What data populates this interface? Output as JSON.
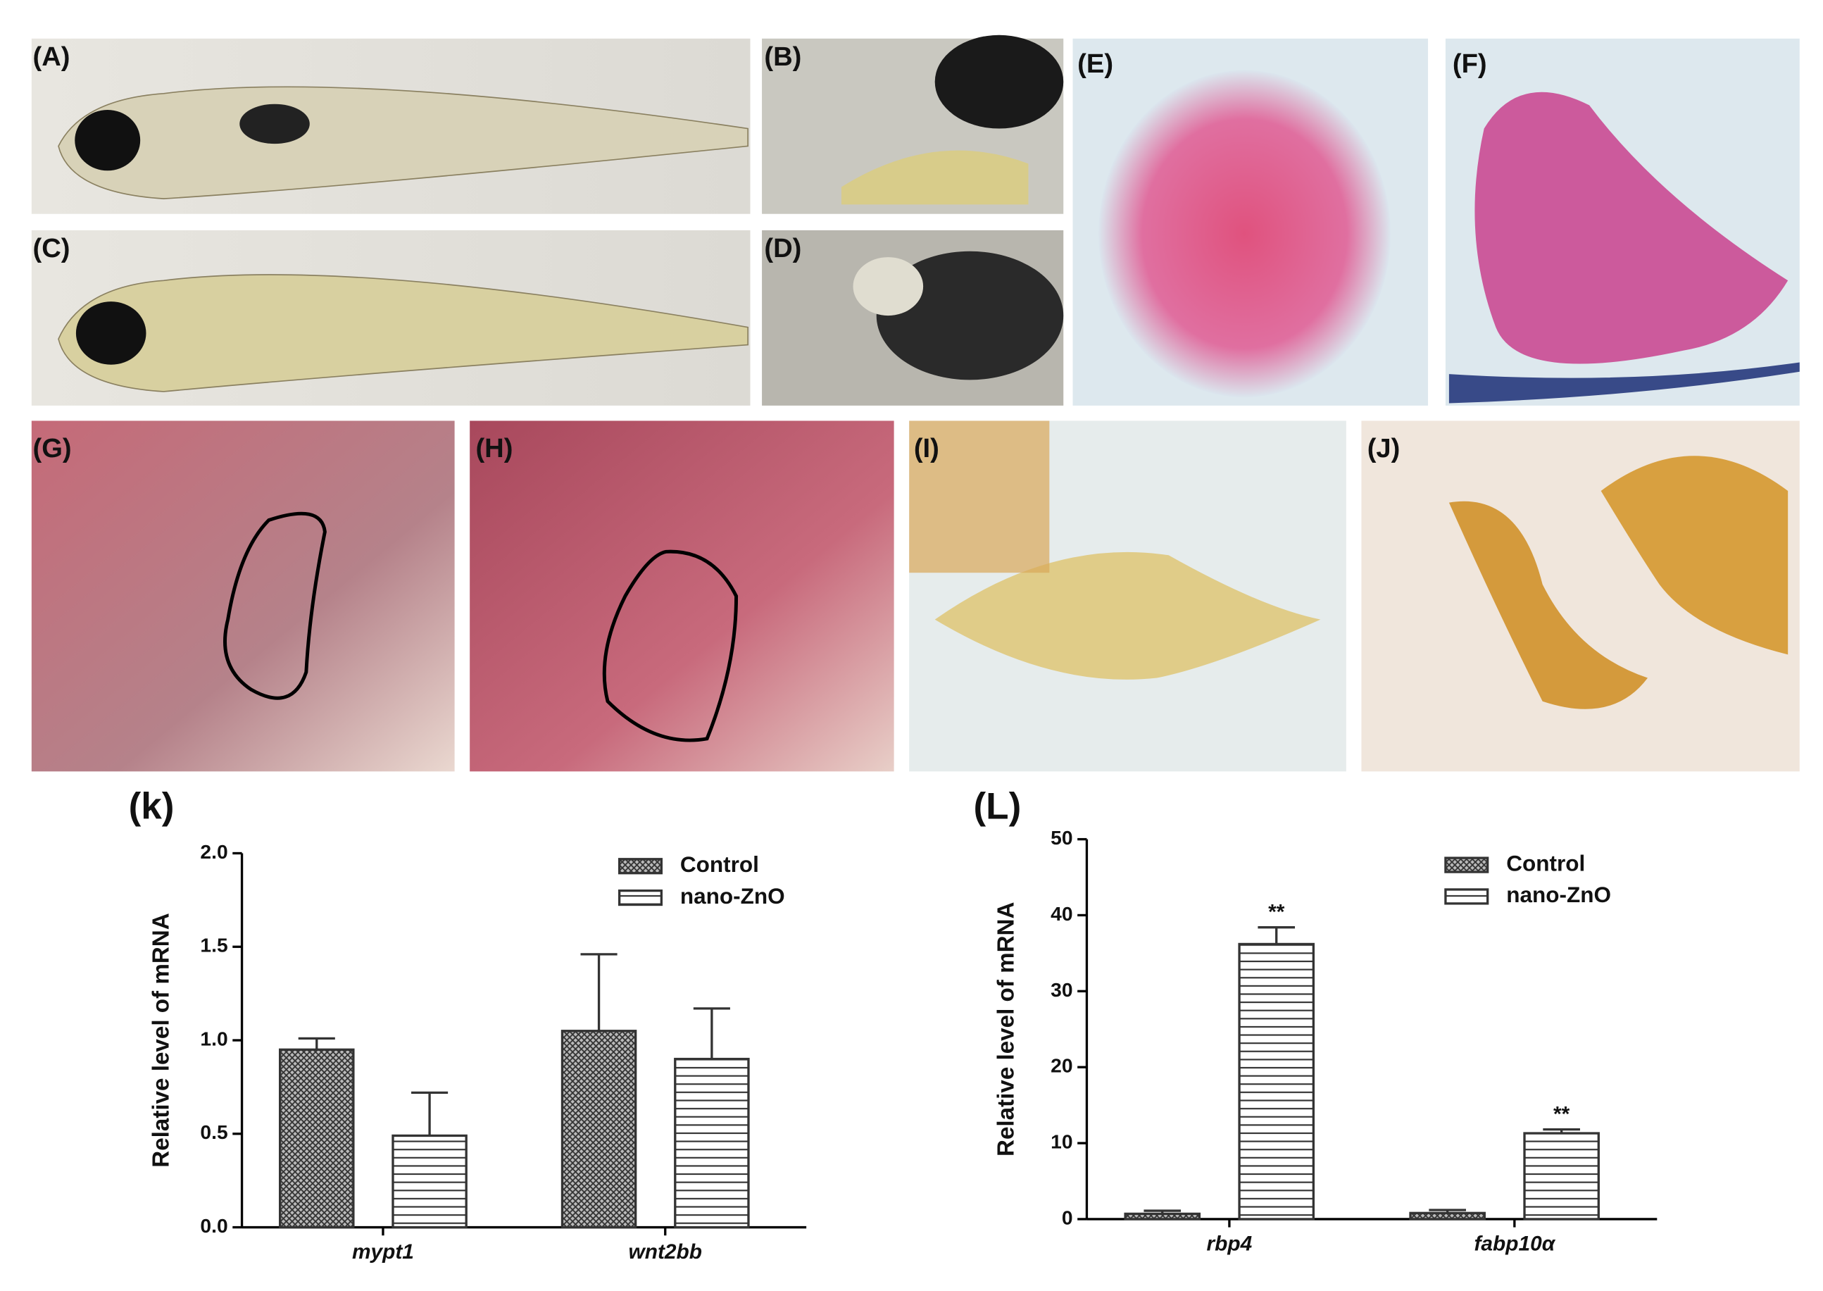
{
  "panels": [
    "(A)",
    "(B)",
    "(C)",
    "(D)",
    "(E)",
    "(F)",
    "(G)",
    "(H)",
    "(I)",
    "(J)"
  ],
  "chart_data": [
    {
      "type": "bar",
      "label": "(k)",
      "y_label": "Relative level of mRNA",
      "categories": [
        "mypt1",
        "wnt2bb"
      ],
      "series": [
        {
          "name": "Control",
          "color": "#333333",
          "pattern": "crosshatch",
          "values": [
            0.95,
            1.05
          ],
          "errors": [
            0.06,
            0.41
          ]
        },
        {
          "name": "nano-ZnO",
          "color": "#333333",
          "pattern": "hlines",
          "values": [
            0.49,
            0.9
          ],
          "errors": [
            0.23,
            0.27
          ]
        }
      ],
      "ylim": [
        0,
        2
      ],
      "yticks": [
        {
          "value": 0,
          "label": "0.0"
        },
        0.5,
        {
          "value": 1,
          "label": "1.0"
        },
        1.5,
        {
          "value": 2,
          "label": "2.0"
        }
      ],
      "legend": "upper right"
    },
    {
      "type": "bar",
      "label": "(L)",
      "y_label": "Relative level of mRNA",
      "categories": [
        "rbp4",
        "fabp10α"
      ],
      "series": [
        {
          "name": "Control",
          "color": "#333333",
          "pattern": "crosshatch",
          "values": [
            0.7,
            0.8
          ],
          "errors": [
            0.4,
            0.4
          ]
        },
        {
          "name": "nano-ZnO",
          "color": "#333333",
          "pattern": "hlines",
          "values": [
            36.2,
            11.3
          ],
          "errors": [
            2.2,
            0.5
          ],
          "annotations": [
            "**",
            "**"
          ]
        }
      ],
      "ylim": [
        0,
        50
      ],
      "yticks": [
        0,
        10,
        20,
        30,
        40,
        50
      ],
      "legend": "upper right"
    }
  ]
}
